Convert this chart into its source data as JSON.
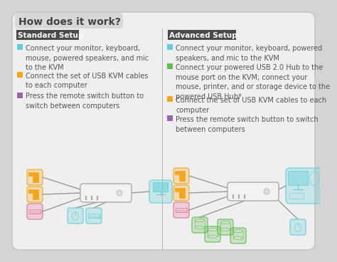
{
  "bg_color": "#d4d4d4",
  "panel_color": "#efefef",
  "panel_edge": "#c0c0c0",
  "title": "How does it work?",
  "title_bg": "#d8d8d8",
  "title_fontsize": 10,
  "title_color": "#444444",
  "left_header": "Standard Setup",
  "right_header": "Advanced Setup",
  "header_bg": "#4a4a4a",
  "header_text_color": "#ffffff",
  "header_fontsize": 7.5,
  "left_bullets": [
    {
      "color": "#5ecfd8",
      "text": "Connect your monitor, keyboard,\nmouse, powered speakers, and mic\nto the KVM"
    },
    {
      "color": "#f5a51b",
      "text": "Connect the set of USB KVM cables\nto each computer"
    },
    {
      "color": "#9966aa",
      "text": "Press the remote switch button to\nswitch between computers"
    }
  ],
  "right_bullets": [
    {
      "color": "#5ecfd8",
      "text": "Connect your monitor, keyboard, powered\nspeakers, and mic to the KVM"
    },
    {
      "color": "#66bb55",
      "text": "Connect your powered USB 2.0 Hub to the\nmouse port on the KVM; connect your\nmouse, printer, and or storage device to the\npowered USB Hub*"
    },
    {
      "color": "#f5a51b",
      "text": "Connect the set of USB KVM cables to each\ncomputer"
    },
    {
      "color": "#9966aa",
      "text": "Press the remote switch button to switch\nbetween computers"
    }
  ],
  "text_fontsize": 7.0,
  "divider_color": "#bbbbbb",
  "line_color": "#999999",
  "kvm_fill": "#f2f2f2",
  "kvm_edge": "#aaaaaa",
  "orange_fill": "#f5a51b44",
  "orange_edge": "#f5a51b",
  "pink_fill": "#ee88aa55",
  "pink_edge": "#dd7799",
  "blue_fill": "#5ecfd844",
  "blue_edge": "#5ecfd8",
  "green_fill": "#66bb5544",
  "green_edge": "#66bb55"
}
